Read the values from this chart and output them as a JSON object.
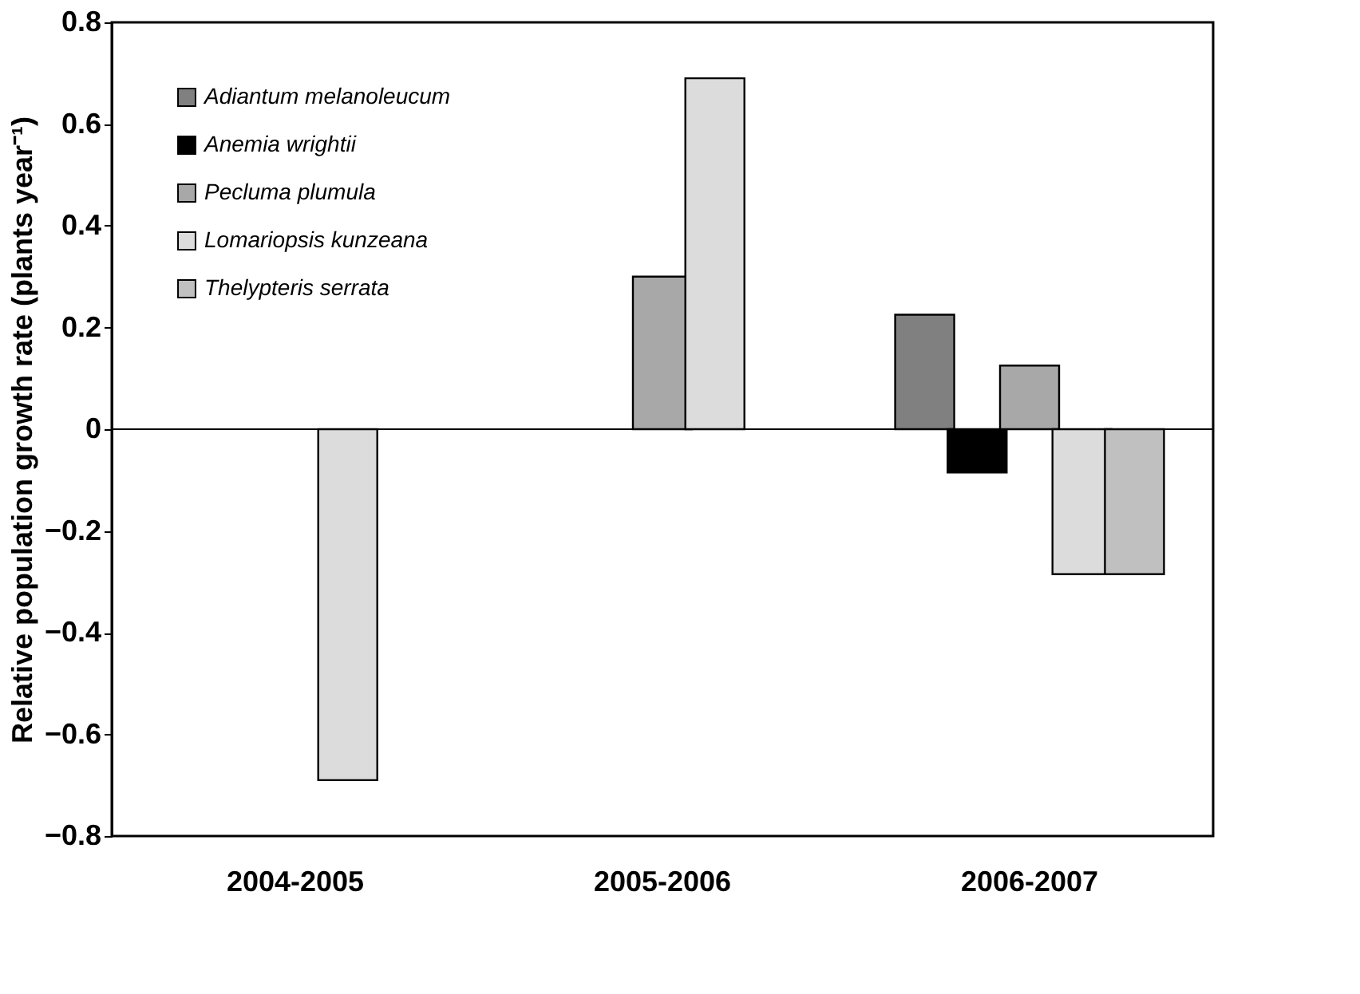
{
  "chart_data": {
    "type": "bar",
    "ylabel": "Relative population growth rate (plants year⁻¹)",
    "categories": [
      "2004-2005",
      "2005-2006",
      "2006-2007"
    ],
    "series": [
      {
        "name": "Adiantum melanoleucum",
        "color": "#808080",
        "values": [
          null,
          null,
          0.225
        ]
      },
      {
        "name": "Anemia wrightii",
        "color": "#000000",
        "values": [
          null,
          null,
          -0.085
        ]
      },
      {
        "name": "Pecluma plumula",
        "color": "#a8a8a8",
        "values": [
          null,
          0.3,
          0.125
        ]
      },
      {
        "name": "Lomariopsis kunzeana",
        "color": "#dcdcdc",
        "values": [
          -0.69,
          0.69,
          -0.285
        ]
      },
      {
        "name": "Thelypteris serrata",
        "color": "#c0c0c0",
        "values": [
          null,
          null,
          -0.285
        ]
      }
    ],
    "ylim": [
      -0.8,
      0.8
    ],
    "yticks": [
      -0.8,
      -0.6,
      -0.4,
      -0.2,
      0,
      0.2,
      0.4,
      0.6,
      0.8
    ],
    "ref_lines": [
      {
        "axis": "y",
        "value": 0
      }
    ],
    "grid": false,
    "legend": "top left"
  }
}
